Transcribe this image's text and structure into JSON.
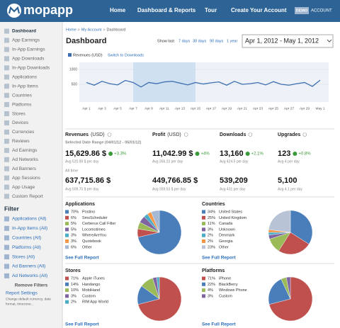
{
  "header": {
    "logo": "mopapp",
    "nav": [
      "Home",
      "Dashboard & Reports",
      "Tour",
      "Create Your Account"
    ],
    "badge": "DEMO",
    "account": "ACCOUNT"
  },
  "sidebar": {
    "items": [
      "Dashboard",
      "App Earnings",
      "In-App Earnings",
      "App Downloads",
      "In-App Downloads",
      "Applications",
      "In-App Items",
      "Countries",
      "Platforms",
      "Stores",
      "Devices",
      "Currencies",
      "Reviews",
      "Ad Earnings",
      "Ad Networks",
      "Ad Banners",
      "App Sessions",
      "App Usage",
      "Custom Report"
    ],
    "filter_title": "Filter",
    "filters": [
      "Applications (All)",
      "In-App Items (All)",
      "Countries (All)",
      "Platforms (All)",
      "Stores (All)",
      "Ad Banners (All)",
      "Ad Networks (All)"
    ],
    "remove": "Remove Filters",
    "settings": "Report Settings",
    "settings_note": [
      "Change default currency, date",
      "format, timezone..."
    ]
  },
  "breadcrumb": {
    "items": [
      "Home",
      "My Account",
      "Dashboard"
    ],
    "separator": ">"
  },
  "title": "Dashboard",
  "show_last": "Show last",
  "ranges": [
    "7 days",
    "30 days",
    "90 days",
    "1 year"
  ],
  "date_range": "Apr 1, 2012 - May 1, 2012",
  "revenue_chart": {
    "type": "line",
    "legend": "Revenues (USD)",
    "switch": "Switch to Downloads",
    "color": "#3d6fb0",
    "categories": [
      "Apr 1",
      null,
      "Apr 3",
      null,
      "Apr 5",
      null,
      "Apr 7",
      null,
      "Apr 9",
      null,
      "Apr 11",
      null,
      "Apr 13",
      null,
      "Apr 15",
      null,
      "Apr 17",
      null,
      "Apr 19",
      null,
      "Apr 21",
      null,
      "Apr 23",
      null,
      "Apr 25",
      null,
      "Apr 27",
      null,
      "Apr 29",
      null,
      "May 1"
    ],
    "values": [
      560,
      470,
      600,
      520,
      480,
      630,
      560,
      410,
      560,
      520,
      580,
      600,
      540,
      480,
      560,
      510,
      550,
      580,
      470,
      600,
      500,
      520,
      560,
      480,
      590,
      500,
      470,
      520,
      560,
      430,
      640
    ],
    "ylim": [
      0,
      1000
    ],
    "yticks": [
      500,
      1000
    ]
  },
  "metrics": {
    "range_label": "Selected Date Range (04/01/12 - 05/01/12)",
    "all_time": "All time",
    "items": [
      {
        "name": "Revenues",
        "unit": "(USD)",
        "today": "15,629.86 $",
        "change": "+3.3%",
        "avg": "Avg 520.99 $ per day",
        "total": "637,715.86 $",
        "total_avg": "Avg 509.70 $ per day"
      },
      {
        "name": "Profit",
        "unit": "(USD)",
        "today": "11,042.99 $",
        "change": "+4%",
        "avg": "Avg 356.23 per day",
        "total": "449,766.85 $",
        "total_avg": "Avg 359.53 $ per day"
      },
      {
        "name": "Downloads",
        "today": "13,160",
        "change": "+2.1%",
        "avg": "Avg 424.5 per day",
        "total": "539,209",
        "total_avg": "Avg 431 per day"
      },
      {
        "name": "Upgrades",
        "today": "123",
        "change": "+0.8%",
        "avg": "Avg 4 per day",
        "total": "5,100",
        "total_avg": "Avg 4.1 per day"
      }
    ]
  },
  "pies": [
    {
      "type": "pie",
      "title": "Applications",
      "link": "See Full Report",
      "labels": [
        "Postino",
        "SmsScheduler",
        "Cerberus Call Filter",
        "Locomotimes",
        "WhereAreYou",
        "Quotebook",
        "Other"
      ],
      "values": [
        70,
        6,
        5,
        5,
        3,
        3,
        6
      ],
      "value_labels": [
        "70%",
        "6%",
        "5%",
        "5%",
        "3%",
        "3%",
        "6%"
      ],
      "colors": [
        "#4a7ebb",
        "#c0504d",
        "#9bbb59",
        "#8064a2",
        "#4bacc6",
        "#f79646",
        "#a5b9d5"
      ]
    },
    {
      "type": "pie",
      "title": "Countries",
      "link": "See Full Report",
      "labels": [
        "United States",
        "United Kingdom",
        "Canada",
        "Unknown",
        "Denmark",
        "Georgia",
        "Other"
      ],
      "values": [
        34,
        25,
        11,
        3,
        2,
        2,
        23
      ],
      "value_labels": [
        "34%",
        "25%",
        "11%",
        "3%",
        "2%",
        "2%",
        "23%"
      ],
      "colors": [
        "#4a7ebb",
        "#c0504d",
        "#9bbb59",
        "#8064a2",
        "#4bacc6",
        "#f79646",
        "#b8c4d6"
      ]
    },
    {
      "type": "pie",
      "title": "Stores",
      "link": "See Full Report",
      "labels": [
        "Apple iTunes",
        "Handango",
        "MobiHand",
        "Custom",
        "RIM App World"
      ],
      "values": [
        71,
        14,
        10,
        3,
        2
      ],
      "value_labels": [
        "71%",
        "14%",
        "10%",
        "3%",
        "2%"
      ],
      "colors": [
        "#c0504d",
        "#4a7ebb",
        "#9bbb59",
        "#8064a2",
        "#4bacc6"
      ]
    },
    {
      "type": "pie",
      "title": "Platforms",
      "link": "See Full Report",
      "labels": [
        "iPhone",
        "BlackBerry",
        "Windows Phone",
        "Custom"
      ],
      "values": [
        71,
        22,
        4,
        3
      ],
      "value_labels": [
        "71%",
        "22%",
        "4%",
        "3%"
      ],
      "colors": [
        "#c0504d",
        "#4a7ebb",
        "#9bbb59",
        "#8064a2"
      ]
    }
  ]
}
